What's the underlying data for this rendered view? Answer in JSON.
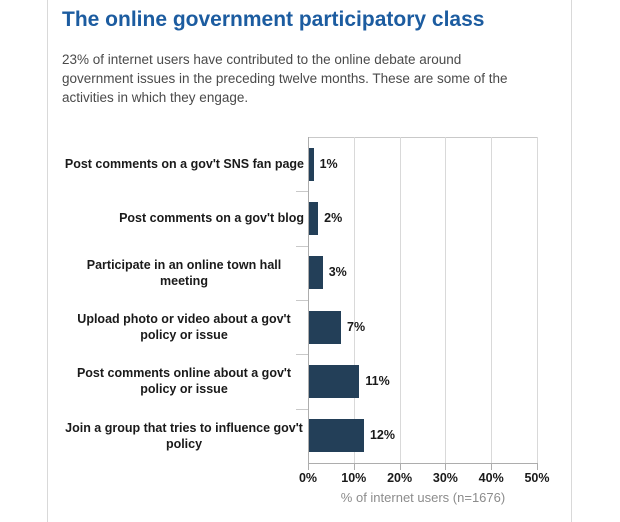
{
  "header": {
    "title": "The online government participatory class",
    "subtitle": "23% of internet users have contributed to the online debate around government issues in the preceding twelve months. These are some of the activities in which they engage."
  },
  "chart_data": {
    "type": "bar",
    "orientation": "horizontal",
    "title": "The online government participatory class",
    "categories": [
      "Post comments on a gov't SNS fan page",
      "Post comments on a gov't blog",
      "Participate in an online town hall meeting",
      "Upload photo or video about a gov't policy or issue",
      "Post comments online about a gov't policy or issue",
      "Join a group that tries to influence gov't policy"
    ],
    "values": [
      1,
      2,
      3,
      7,
      11,
      12
    ],
    "value_labels": [
      "1%",
      "2%",
      "3%",
      "7%",
      "11%",
      "12%"
    ],
    "xlim": [
      0,
      50
    ],
    "x_tick_values": [
      0,
      10,
      20,
      30,
      40,
      50
    ],
    "x_tick_labels": [
      "0%",
      "10%",
      "20%",
      "30%",
      "40%",
      "50%"
    ],
    "xlabel": "% of internet users (n=1676)",
    "grid": true,
    "legend": "none"
  },
  "colors": {
    "title": "#1C5CA0",
    "subtitle": "#4A4A4A",
    "bar": "#233F58",
    "label_text": "#1A1A1A",
    "axis_label": "#8C8C8C"
  }
}
